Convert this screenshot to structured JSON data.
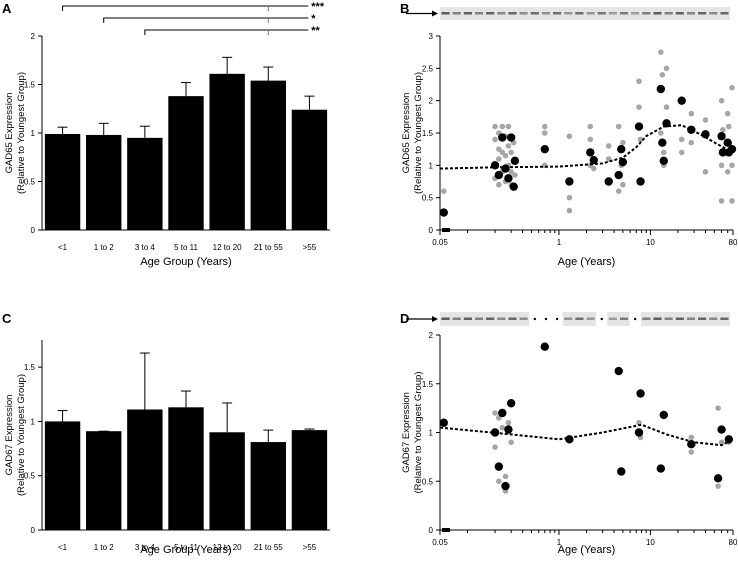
{
  "chart_data": [
    {
      "panel": "A",
      "type": "bar",
      "categories": [
        "<1",
        "1 to 2",
        "3 to 4",
        "5 to 11",
        "12 to 20",
        "21 to 55",
        ">55"
      ],
      "values": [
        0.99,
        0.98,
        0.95,
        1.38,
        1.61,
        1.54,
        1.24
      ],
      "errors": [
        0.07,
        0.12,
        0.12,
        0.14,
        0.17,
        0.14,
        0.14
      ],
      "xlabel": "Age Group (Years)",
      "ylabel": [
        "GAD65 Expression",
        "(Relative to Youngest Group)"
      ],
      "ylim": [
        0,
        2
      ],
      "yticks": [
        "0",
        "0.5",
        "1",
        "1.5",
        "2"
      ],
      "significance": [
        {
          "from": 0,
          "to": 5,
          "stars": "***"
        },
        {
          "from": 1,
          "to": 5,
          "stars": "*"
        },
        {
          "from": 2,
          "to": 5,
          "stars": "**"
        }
      ]
    },
    {
      "panel": "B",
      "type": "scatter",
      "xscale": "log",
      "xlim": [
        0.05,
        80
      ],
      "xticks": [
        "0.05",
        "1",
        "10",
        "80"
      ],
      "ylim": [
        0,
        3
      ],
      "yticks": [
        "0",
        "0.5",
        "1",
        "1.5",
        "2",
        "2.5",
        "3"
      ],
      "xlabel": "Age (Years)",
      "ylabel": [
        "GAD65 Expression",
        "(Relative to Youngest Group)"
      ],
      "means": [
        [
          0.055,
          0.27
        ],
        [
          0.2,
          1.0
        ],
        [
          0.22,
          0.85
        ],
        [
          0.24,
          1.43
        ],
        [
          0.26,
          0.95
        ],
        [
          0.28,
          0.8
        ],
        [
          0.3,
          1.43
        ],
        [
          0.32,
          0.67
        ],
        [
          0.33,
          1.07
        ],
        [
          0.7,
          1.25
        ],
        [
          1.3,
          0.75
        ],
        [
          2.2,
          1.2
        ],
        [
          2.4,
          1.08
        ],
        [
          3.5,
          0.75
        ],
        [
          4.5,
          0.85
        ],
        [
          5.0,
          1.05
        ],
        [
          4.8,
          1.25
        ],
        [
          7.5,
          1.6
        ],
        [
          7.8,
          0.75
        ],
        [
          13,
          2.18
        ],
        [
          13.5,
          1.35
        ],
        [
          14,
          1.07
        ],
        [
          15,
          1.65
        ],
        [
          22,
          2.0
        ],
        [
          28,
          1.55
        ],
        [
          40,
          1.48
        ],
        [
          60,
          1.45
        ],
        [
          62,
          1.2
        ],
        [
          70,
          1.35
        ],
        [
          72,
          1.2
        ],
        [
          78,
          1.25
        ]
      ],
      "replicates": [
        [
          0.055,
          0.6
        ],
        [
          0.2,
          1.4
        ],
        [
          0.2,
          1.6
        ],
        [
          0.2,
          0.8
        ],
        [
          0.22,
          1.5
        ],
        [
          0.22,
          1.25
        ],
        [
          0.22,
          1.1
        ],
        [
          0.22,
          0.7
        ],
        [
          0.24,
          1.6
        ],
        [
          0.24,
          1.2
        ],
        [
          0.24,
          0.9
        ],
        [
          0.26,
          1.45
        ],
        [
          0.26,
          1.15
        ],
        [
          0.26,
          0.75
        ],
        [
          0.28,
          1.6
        ],
        [
          0.28,
          1.3
        ],
        [
          0.28,
          1.0
        ],
        [
          0.3,
          1.2
        ],
        [
          0.3,
          0.9
        ],
        [
          0.3,
          0.7
        ],
        [
          0.32,
          1.35
        ],
        [
          0.32,
          1.05
        ],
        [
          0.33,
          0.85
        ],
        [
          0.7,
          1.6
        ],
        [
          0.7,
          1.5
        ],
        [
          0.7,
          1.0
        ],
        [
          1.3,
          1.45
        ],
        [
          1.3,
          0.5
        ],
        [
          1.3,
          0.3
        ],
        [
          2.2,
          1.6
        ],
        [
          2.2,
          1.4
        ],
        [
          2.2,
          1.0
        ],
        [
          2.4,
          0.95
        ],
        [
          3.5,
          1.3
        ],
        [
          3.5,
          1.1
        ],
        [
          4.5,
          1.6
        ],
        [
          4.5,
          0.6
        ],
        [
          5.0,
          1.35
        ],
        [
          5.0,
          0.7
        ],
        [
          4.8,
          1.0
        ],
        [
          7.5,
          2.3
        ],
        [
          7.5,
          1.9
        ],
        [
          7.8,
          1.4
        ],
        [
          13,
          2.75
        ],
        [
          13,
          1.5
        ],
        [
          13.5,
          2.4
        ],
        [
          14,
          1.2
        ],
        [
          14,
          1.0
        ],
        [
          15,
          2.5
        ],
        [
          15,
          1.9
        ],
        [
          22,
          1.4
        ],
        [
          22,
          1.2
        ],
        [
          28,
          1.8
        ],
        [
          28,
          1.35
        ],
        [
          40,
          1.7
        ],
        [
          40,
          0.9
        ],
        [
          60,
          2.0
        ],
        [
          60,
          1.0
        ],
        [
          60,
          0.45
        ],
        [
          62,
          1.55
        ],
        [
          70,
          1.8
        ],
        [
          70,
          0.9
        ],
        [
          72,
          1.6
        ],
        [
          78,
          2.2
        ],
        [
          78,
          1.0
        ],
        [
          78,
          0.45
        ]
      ],
      "trend": [
        [
          0.05,
          0.95
        ],
        [
          0.2,
          0.97
        ],
        [
          1,
          0.98
        ],
        [
          3,
          1.03
        ],
        [
          5,
          1.12
        ],
        [
          7,
          1.28
        ],
        [
          9,
          1.45
        ],
        [
          14,
          1.6
        ],
        [
          22,
          1.62
        ],
        [
          35,
          1.48
        ],
        [
          55,
          1.32
        ],
        [
          80,
          1.2
        ]
      ]
    },
    {
      "panel": "C",
      "type": "bar",
      "categories": [
        "<1",
        "1 to 2",
        "3 to 4",
        "5 to 11",
        "12 to 20",
        "21 to 55",
        ">55"
      ],
      "values": [
        1.0,
        0.91,
        1.11,
        1.13,
        0.9,
        0.81,
        0.92
      ],
      "errors": [
        0.1,
        0.0,
        0.52,
        0.15,
        0.27,
        0.11,
        0.01
      ],
      "xlabel": "Age Group (Years)",
      "ylabel": [
        "GAD67 Expression",
        "(Relative to Youngest Group)"
      ],
      "ylim": [
        0,
        1.75
      ],
      "yticks": [
        "0",
        "0.5",
        "1",
        "1.5"
      ]
    },
    {
      "panel": "D",
      "type": "scatter",
      "xscale": "log",
      "xlim": [
        0.05,
        80
      ],
      "xticks": [
        "0.05",
        "1",
        "10",
        "80"
      ],
      "ylim": [
        0,
        2
      ],
      "yticks": [
        "0",
        "0.5",
        "1",
        "1.5",
        "2"
      ],
      "xlabel": "Age (Years)",
      "ylabel": [
        "GAD67 Expression",
        "(Relative to Youngest Group)"
      ],
      "means": [
        [
          0.055,
          1.1
        ],
        [
          0.2,
          1.0
        ],
        [
          0.22,
          0.65
        ],
        [
          0.24,
          1.2
        ],
        [
          0.26,
          0.45
        ],
        [
          0.28,
          1.03
        ],
        [
          0.3,
          1.3
        ],
        [
          0.7,
          1.88
        ],
        [
          1.3,
          0.93
        ],
        [
          4.5,
          1.63
        ],
        [
          4.8,
          0.6
        ],
        [
          7.5,
          1.0
        ],
        [
          7.8,
          1.4
        ],
        [
          13,
          0.63
        ],
        [
          14,
          1.18
        ],
        [
          28,
          0.88
        ],
        [
          55,
          0.53
        ],
        [
          60,
          1.03
        ],
        [
          72,
          0.93
        ]
      ],
      "replicates": [
        [
          0.2,
          1.2
        ],
        [
          0.2,
          0.85
        ],
        [
          0.22,
          1.15
        ],
        [
          0.22,
          0.5
        ],
        [
          0.24,
          1.05
        ],
        [
          0.26,
          0.55
        ],
        [
          0.26,
          0.4
        ],
        [
          0.28,
          1.1
        ],
        [
          0.3,
          0.9
        ],
        [
          7.5,
          1.1
        ],
        [
          7.8,
          0.95
        ],
        [
          28,
          0.95
        ],
        [
          28,
          0.8
        ],
        [
          55,
          1.25
        ],
        [
          55,
          0.45
        ],
        [
          60,
          0.9
        ],
        [
          72,
          0.9
        ]
      ],
      "trend": [
        [
          0.05,
          1.05
        ],
        [
          0.3,
          0.98
        ],
        [
          1,
          0.93
        ],
        [
          3,
          1.0
        ],
        [
          8,
          1.08
        ],
        [
          15,
          0.98
        ],
        [
          30,
          0.9
        ],
        [
          60,
          0.87
        ],
        [
          80,
          0.93
        ]
      ]
    }
  ]
}
